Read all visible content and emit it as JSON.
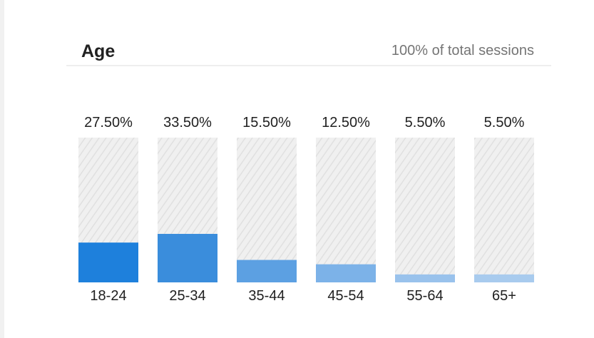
{
  "header": {
    "title": "Age",
    "subtitle": "100% of total sessions"
  },
  "chart_data": {
    "type": "bar",
    "title": "Age",
    "categories": [
      "18-24",
      "25-34",
      "35-44",
      "45-54",
      "55-64",
      "65+"
    ],
    "values": [
      27.5,
      33.5,
      15.5,
      12.5,
      5.5,
      5.5
    ],
    "value_labels": [
      "27.50%",
      "33.50%",
      "15.50%",
      "12.50%",
      "5.50%",
      "5.50%"
    ],
    "ylim": [
      0,
      100
    ],
    "grid": false,
    "colors": [
      "#1e80dc",
      "#3a8ddc",
      "#5ca0e2",
      "#7cb2e8",
      "#99c2ec",
      "#a8cbee"
    ],
    "track_color": "#eeeeee"
  }
}
